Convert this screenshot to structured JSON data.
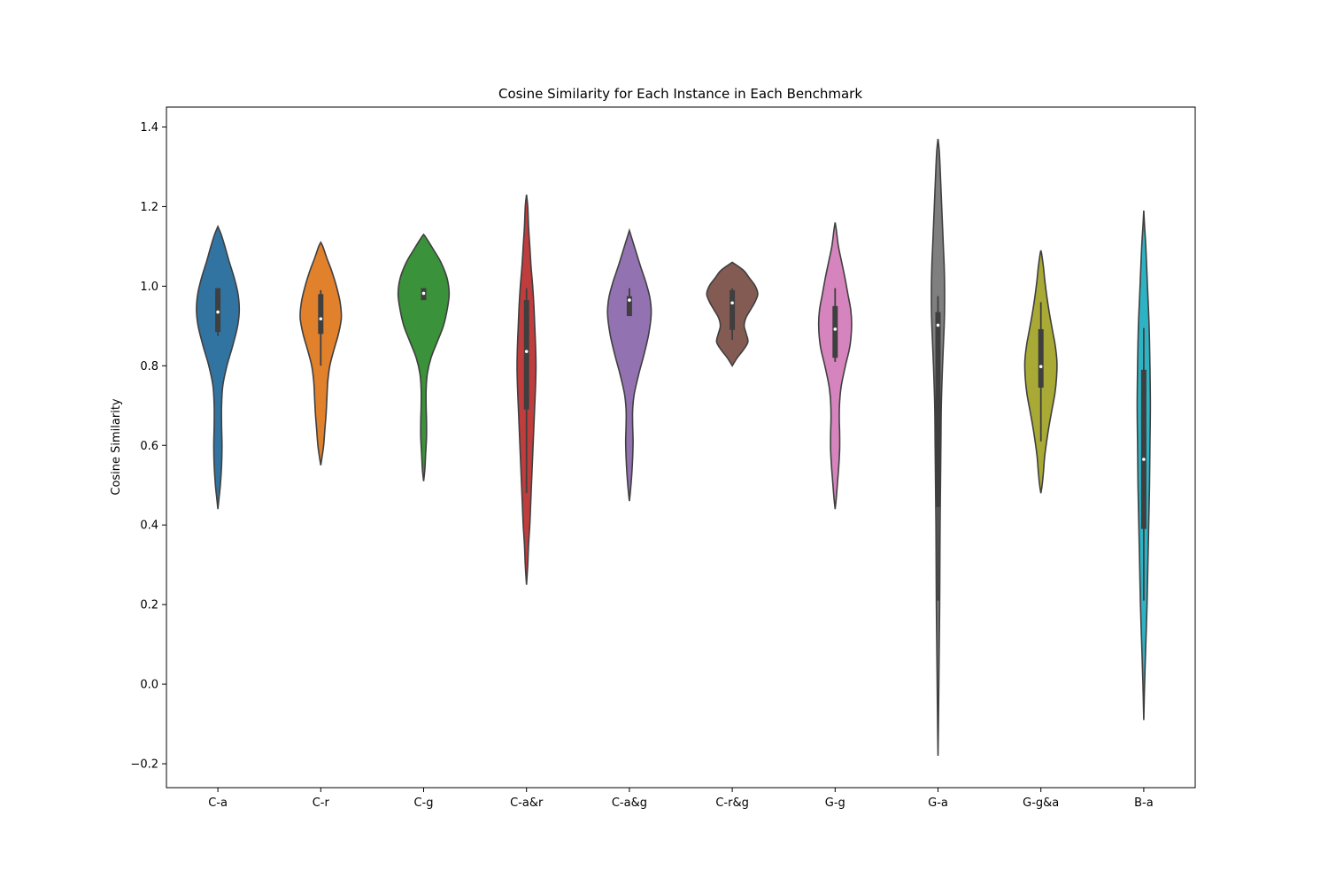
{
  "chart_data": {
    "type": "violin",
    "title": "Cosine Similarity for Each Instance in Each Benchmark",
    "xlabel": "",
    "ylabel": "Cosine Similarity",
    "ylim": [
      -0.26,
      1.45
    ],
    "yticks": [
      -0.2,
      0.0,
      0.2,
      0.4,
      0.6,
      0.8,
      1.0,
      1.2,
      1.4
    ],
    "ytick_labels": [
      "−0.2",
      "0.0",
      "0.2",
      "0.4",
      "0.6",
      "0.8",
      "1.0",
      "1.2",
      "1.4"
    ],
    "grid": false,
    "legend": "none",
    "categories": [
      "C-a",
      "C-r",
      "C-g",
      "C-a&r",
      "C-a&g",
      "C-r&g",
      "G-g",
      "G-a",
      "G-g&a",
      "B-a"
    ],
    "colors": [
      "#3274a1",
      "#e1812c",
      "#3a923a",
      "#c03d3e",
      "#9372b2",
      "#845b53",
      "#d684bd",
      "#7f7f7f",
      "#a9aa35",
      "#2eb3c4"
    ],
    "violins": [
      {
        "name": "C-a",
        "profile": [
          [
            0.44,
            0.0
          ],
          [
            0.47,
            0.03
          ],
          [
            0.5,
            0.06
          ],
          [
            0.55,
            0.09
          ],
          [
            0.6,
            0.1
          ],
          [
            0.65,
            0.09
          ],
          [
            0.7,
            0.09
          ],
          [
            0.75,
            0.12
          ],
          [
            0.8,
            0.22
          ],
          [
            0.85,
            0.36
          ],
          [
            0.9,
            0.48
          ],
          [
            0.94,
            0.52
          ],
          [
            0.98,
            0.49
          ],
          [
            1.02,
            0.4
          ],
          [
            1.06,
            0.28
          ],
          [
            1.1,
            0.17
          ],
          [
            1.13,
            0.08
          ],
          [
            1.15,
            0.0
          ]
        ],
        "whisker": [
          0.875,
          0.995
        ],
        "q1": 0.885,
        "q3": 0.995,
        "median": 0.935
      },
      {
        "name": "C-r",
        "profile": [
          [
            0.55,
            0.0
          ],
          [
            0.57,
            0.03
          ],
          [
            0.6,
            0.07
          ],
          [
            0.64,
            0.1
          ],
          [
            0.68,
            0.13
          ],
          [
            0.72,
            0.15
          ],
          [
            0.76,
            0.17
          ],
          [
            0.8,
            0.22
          ],
          [
            0.84,
            0.32
          ],
          [
            0.88,
            0.43
          ],
          [
            0.92,
            0.5
          ],
          [
            0.96,
            0.47
          ],
          [
            1.0,
            0.38
          ],
          [
            1.04,
            0.26
          ],
          [
            1.07,
            0.15
          ],
          [
            1.1,
            0.05
          ],
          [
            1.11,
            0.0
          ]
        ],
        "whisker": [
          0.8,
          0.99
        ],
        "q1": 0.88,
        "q3": 0.98,
        "median": 0.918
      },
      {
        "name": "C-g",
        "profile": [
          [
            0.51,
            0.0
          ],
          [
            0.54,
            0.03
          ],
          [
            0.58,
            0.05
          ],
          [
            0.62,
            0.07
          ],
          [
            0.66,
            0.07
          ],
          [
            0.7,
            0.06
          ],
          [
            0.74,
            0.06
          ],
          [
            0.78,
            0.09
          ],
          [
            0.82,
            0.18
          ],
          [
            0.86,
            0.33
          ],
          [
            0.9,
            0.48
          ],
          [
            0.94,
            0.57
          ],
          [
            0.98,
            0.62
          ],
          [
            1.02,
            0.57
          ],
          [
            1.06,
            0.42
          ],
          [
            1.09,
            0.25
          ],
          [
            1.12,
            0.07
          ],
          [
            1.13,
            0.0
          ]
        ],
        "whisker": [
          0.965,
          0.995
        ],
        "q1": 0.965,
        "q3": 0.995,
        "median": 0.982
      },
      {
        "name": "C-a&r",
        "profile": [
          [
            0.25,
            0.0
          ],
          [
            0.3,
            0.03
          ],
          [
            0.35,
            0.05
          ],
          [
            0.4,
            0.08
          ],
          [
            0.45,
            0.1
          ],
          [
            0.5,
            0.12
          ],
          [
            0.55,
            0.14
          ],
          [
            0.6,
            0.16
          ],
          [
            0.65,
            0.18
          ],
          [
            0.7,
            0.2
          ],
          [
            0.75,
            0.22
          ],
          [
            0.8,
            0.23
          ],
          [
            0.85,
            0.22
          ],
          [
            0.9,
            0.2
          ],
          [
            0.95,
            0.18
          ],
          [
            1.0,
            0.15
          ],
          [
            1.05,
            0.11
          ],
          [
            1.1,
            0.08
          ],
          [
            1.15,
            0.05
          ],
          [
            1.2,
            0.03
          ],
          [
            1.23,
            0.0
          ]
        ],
        "whisker": [
          0.48,
          0.995
        ],
        "q1": 0.69,
        "q3": 0.965,
        "median": 0.836
      },
      {
        "name": "C-a&g",
        "profile": [
          [
            0.46,
            0.0
          ],
          [
            0.49,
            0.03
          ],
          [
            0.53,
            0.06
          ],
          [
            0.57,
            0.08
          ],
          [
            0.61,
            0.09
          ],
          [
            0.65,
            0.08
          ],
          [
            0.69,
            0.08
          ],
          [
            0.73,
            0.12
          ],
          [
            0.78,
            0.23
          ],
          [
            0.83,
            0.36
          ],
          [
            0.88,
            0.47
          ],
          [
            0.93,
            0.53
          ],
          [
            0.97,
            0.5
          ],
          [
            1.01,
            0.4
          ],
          [
            1.05,
            0.27
          ],
          [
            1.09,
            0.15
          ],
          [
            1.12,
            0.06
          ],
          [
            1.14,
            0.0
          ]
        ],
        "whisker": [
          0.925,
          0.995
        ],
        "q1": 0.925,
        "q3": 0.975,
        "median": 0.965
      },
      {
        "name": "C-r&g",
        "profile": [
          [
            0.8,
            0.0
          ],
          [
            0.82,
            0.12
          ],
          [
            0.84,
            0.27
          ],
          [
            0.86,
            0.38
          ],
          [
            0.88,
            0.34
          ],
          [
            0.9,
            0.29
          ],
          [
            0.92,
            0.33
          ],
          [
            0.94,
            0.44
          ],
          [
            0.96,
            0.55
          ],
          [
            0.98,
            0.62
          ],
          [
            1.0,
            0.56
          ],
          [
            1.02,
            0.42
          ],
          [
            1.04,
            0.27
          ],
          [
            1.06,
            0.0
          ]
        ],
        "whisker": [
          0.865,
          0.995
        ],
        "q1": 0.89,
        "q3": 0.99,
        "median": 0.958
      },
      {
        "name": "G-g",
        "profile": [
          [
            0.44,
            0.0
          ],
          [
            0.47,
            0.03
          ],
          [
            0.51,
            0.06
          ],
          [
            0.55,
            0.09
          ],
          [
            0.59,
            0.11
          ],
          [
            0.63,
            0.11
          ],
          [
            0.67,
            0.1
          ],
          [
            0.71,
            0.11
          ],
          [
            0.75,
            0.15
          ],
          [
            0.8,
            0.25
          ],
          [
            0.85,
            0.36
          ],
          [
            0.9,
            0.4
          ],
          [
            0.94,
            0.38
          ],
          [
            0.98,
            0.31
          ],
          [
            1.02,
            0.24
          ],
          [
            1.06,
            0.16
          ],
          [
            1.1,
            0.08
          ],
          [
            1.14,
            0.03
          ],
          [
            1.16,
            0.0
          ]
        ],
        "whisker": [
          0.81,
          0.995
        ],
        "q1": 0.82,
        "q3": 0.95,
        "median": 0.892
      },
      {
        "name": "G-a",
        "profile": [
          [
            -0.18,
            0.0
          ],
          [
            -0.1,
            0.01
          ],
          [
            0.0,
            0.02
          ],
          [
            0.1,
            0.03
          ],
          [
            0.2,
            0.04
          ],
          [
            0.3,
            0.045
          ],
          [
            0.4,
            0.05
          ],
          [
            0.5,
            0.06
          ],
          [
            0.6,
            0.07
          ],
          [
            0.7,
            0.08
          ],
          [
            0.8,
            0.11
          ],
          [
            0.9,
            0.15
          ],
          [
            0.95,
            0.16
          ],
          [
            1.0,
            0.16
          ],
          [
            1.05,
            0.15
          ],
          [
            1.1,
            0.13
          ],
          [
            1.15,
            0.11
          ],
          [
            1.2,
            0.09
          ],
          [
            1.25,
            0.07
          ],
          [
            1.3,
            0.05
          ],
          [
            1.34,
            0.03
          ],
          [
            1.37,
            0.0
          ]
        ],
        "whisker": [
          0.21,
          0.975
        ],
        "q1": 0.445,
        "q3": 0.935,
        "median": 0.902
      },
      {
        "name": "G-g&a",
        "profile": [
          [
            0.48,
            0.0
          ],
          [
            0.5,
            0.03
          ],
          [
            0.53,
            0.06
          ],
          [
            0.57,
            0.09
          ],
          [
            0.61,
            0.14
          ],
          [
            0.65,
            0.2
          ],
          [
            0.69,
            0.27
          ],
          [
            0.73,
            0.34
          ],
          [
            0.77,
            0.38
          ],
          [
            0.81,
            0.39
          ],
          [
            0.85,
            0.35
          ],
          [
            0.89,
            0.28
          ],
          [
            0.93,
            0.21
          ],
          [
            0.97,
            0.15
          ],
          [
            1.01,
            0.1
          ],
          [
            1.05,
            0.06
          ],
          [
            1.08,
            0.02
          ],
          [
            1.09,
            0.0
          ]
        ],
        "whisker": [
          0.61,
          0.96
        ],
        "q1": 0.745,
        "q3": 0.892,
        "median": 0.798
      },
      {
        "name": "B-a",
        "profile": [
          [
            -0.09,
            0.0
          ],
          [
            0.0,
            0.02
          ],
          [
            0.1,
            0.05
          ],
          [
            0.2,
            0.08
          ],
          [
            0.3,
            0.1
          ],
          [
            0.4,
            0.12
          ],
          [
            0.5,
            0.14
          ],
          [
            0.6,
            0.15
          ],
          [
            0.7,
            0.16
          ],
          [
            0.8,
            0.15
          ],
          [
            0.9,
            0.13
          ],
          [
            1.0,
            0.09
          ],
          [
            1.1,
            0.05
          ],
          [
            1.15,
            0.02
          ],
          [
            1.19,
            0.0
          ]
        ],
        "whisker": [
          0.21,
          0.895
        ],
        "q1": 0.39,
        "q3": 0.79,
        "median": 0.565
      }
    ]
  }
}
